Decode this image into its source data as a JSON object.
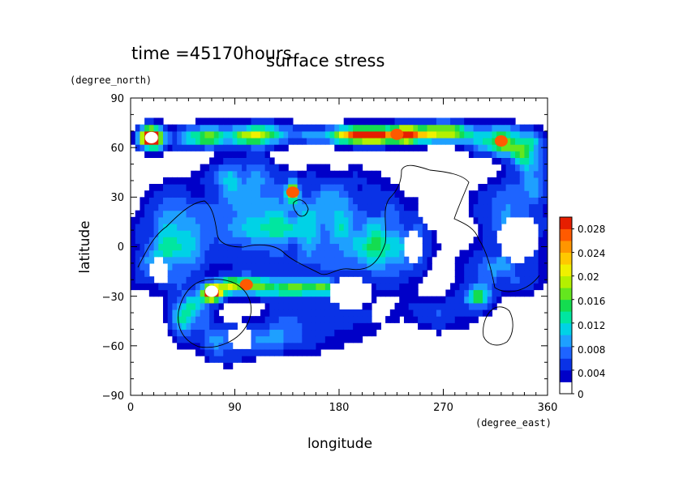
{
  "chart_data": {
    "type": "heatmap",
    "title": "surface stress",
    "time_label": "time =45170hours",
    "xlabel": "longitude",
    "ylabel": "latitude",
    "xunit": "(degree_east)",
    "yunit": "(degree_north)",
    "xlim": [
      0,
      360
    ],
    "ylim": [
      -90,
      90
    ],
    "x_ticks": [
      "0",
      "90",
      "180",
      "270",
      "360"
    ],
    "y_ticks": [
      "90",
      "60",
      "30",
      "0",
      "−30",
      "−60",
      "−90"
    ],
    "colorbar": {
      "min": 0,
      "max": 0.03,
      "tick_labels": [
        "0",
        "0.004",
        "0.008",
        "0.012",
        "0.016",
        "0.02",
        "0.024",
        "0.028"
      ],
      "colors": [
        "#ffffff",
        "#0000c8",
        "#0a32e6",
        "#1e64ff",
        "#1ea0ff",
        "#00d2e6",
        "#00e6a0",
        "#14dc50",
        "#64e61e",
        "#b4f000",
        "#f0f000",
        "#ffc800",
        "#ff9600",
        "#ff5a00",
        "#e61e00"
      ]
    },
    "grid": false,
    "colorbar_placement": "right",
    "hotspots": [
      {
        "lon": 18,
        "lat": 66,
        "value": 0.03
      },
      {
        "lon": 70,
        "lat": -27,
        "value": 0.03
      },
      {
        "lon": 320,
        "lat": 64,
        "value": 0.026
      },
      {
        "lon": 100,
        "lat": -23,
        "value": 0.024
      },
      {
        "lon": 230,
        "lat": 68,
        "value": 0.02
      },
      {
        "lon": 140,
        "lat": 33,
        "value": 0.02
      }
    ]
  }
}
